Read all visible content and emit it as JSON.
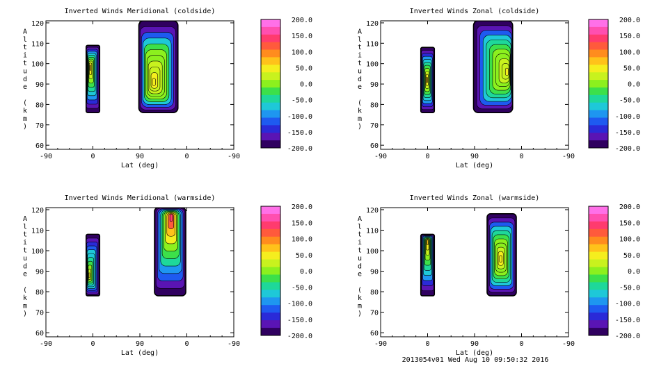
{
  "footer": "2013054v01 Wed Aug 10 09:50:32 2016",
  "colorbar": {
    "ticks": [
      "200.0",
      "150.0",
      "100.0",
      "50.0",
      "0.0",
      "-50.0",
      "-100.0",
      "-150.0",
      "-200.0"
    ],
    "colors": [
      "#ff70e8",
      "#ff4fb0",
      "#ff3b6e",
      "#ff5a3c",
      "#ff8c1e",
      "#ffc21a",
      "#f5ee1e",
      "#c8f21e",
      "#8cf01e",
      "#3ce04a",
      "#1ed89a",
      "#1ec8d8",
      "#1e96f0",
      "#1e5af0",
      "#2a2ad8",
      "#5a14b4",
      "#300060"
    ]
  },
  "chart_data": [
    {
      "type": "heatmap",
      "title": "Inverted Winds Meridional (coldside)",
      "xlabel": "Lat (deg)",
      "ylabel": "Altitude (km)",
      "xticks": [
        "-90",
        "0",
        "90",
        "0",
        "-90"
      ],
      "yticks": [
        "120",
        "110",
        "100",
        "90",
        "80",
        "70",
        "60"
      ],
      "ylim": [
        58,
        121
      ],
      "zlim": [
        -200,
        200
      ],
      "regions": [
        {
          "lat_range": [
            -13,
            13
          ],
          "alt_range": [
            76,
            109
          ],
          "peak_value": 60,
          "peak_lat": -5,
          "peak_alt": 98,
          "base_value": -40
        },
        {
          "lat_range": [
            88,
            163
          ],
          "alt_range": [
            76,
            121
          ],
          "peak_value": 50,
          "peak_lat": 117,
          "peak_alt": 91,
          "base_value": -10
        }
      ]
    },
    {
      "type": "heatmap",
      "title": "Inverted Winds Zonal (coldside)",
      "xlabel": "Lat (deg)",
      "ylabel": "Altitude (km)",
      "xticks": [
        "-90",
        "0",
        "90",
        "0",
        "-90"
      ],
      "yticks": [
        "120",
        "110",
        "100",
        "90",
        "80",
        "70",
        "60"
      ],
      "ylim": [
        58,
        121
      ],
      "zlim": [
        -200,
        200
      ],
      "regions": [
        {
          "lat_range": [
            -13,
            13
          ],
          "alt_range": [
            76,
            108
          ],
          "peak_value": 60,
          "peak_lat": -1,
          "peak_alt": 92,
          "base_value": -50
        },
        {
          "lat_range": [
            88,
            163
          ],
          "alt_range": [
            76,
            121
          ],
          "peak_value": 40,
          "peak_lat": 152,
          "peak_alt": 96,
          "base_value": -20
        }
      ]
    },
    {
      "type": "heatmap",
      "title": "Inverted Winds Meridional (warmside)",
      "xlabel": "Lat (deg)",
      "ylabel": "Altitude (km)",
      "xticks": [
        "-90",
        "0",
        "90",
        "0",
        "-90"
      ],
      "yticks": [
        "120",
        "110",
        "100",
        "90",
        "80",
        "70",
        "60"
      ],
      "ylim": [
        58,
        121
      ],
      "zlim": [
        -200,
        200
      ],
      "regions": [
        {
          "lat_range": [
            -13,
            13
          ],
          "alt_range": [
            78,
            108
          ],
          "peak_value": 40,
          "peak_lat": -7,
          "peak_alt": 88,
          "base_value": -60
        },
        {
          "lat_range": [
            118,
            178
          ],
          "alt_range": [
            78,
            121
          ],
          "peak_value": 150,
          "peak_lat": 150,
          "peak_alt": 116,
          "base_value": -30
        }
      ]
    },
    {
      "type": "heatmap",
      "title": "Inverted Winds Zonal (warmside)",
      "xlabel": "Lat (deg)",
      "ylabel": "Altitude (km)",
      "xticks": [
        "-90",
        "0",
        "90",
        "0",
        "-90"
      ],
      "yticks": [
        "120",
        "110",
        "100",
        "90",
        "80",
        "70",
        "60"
      ],
      "ylim": [
        58,
        121
      ],
      "zlim": [
        -200,
        200
      ],
      "regions": [
        {
          "lat_range": [
            -13,
            13
          ],
          "alt_range": [
            78,
            108
          ],
          "peak_value": 60,
          "peak_lat": 0,
          "peak_alt": 104,
          "base_value": -40
        },
        {
          "lat_range": [
            114,
            170
          ],
          "alt_range": [
            78,
            118
          ],
          "peak_value": 50,
          "peak_lat": 140,
          "peak_alt": 96,
          "base_value": -20
        }
      ]
    }
  ]
}
